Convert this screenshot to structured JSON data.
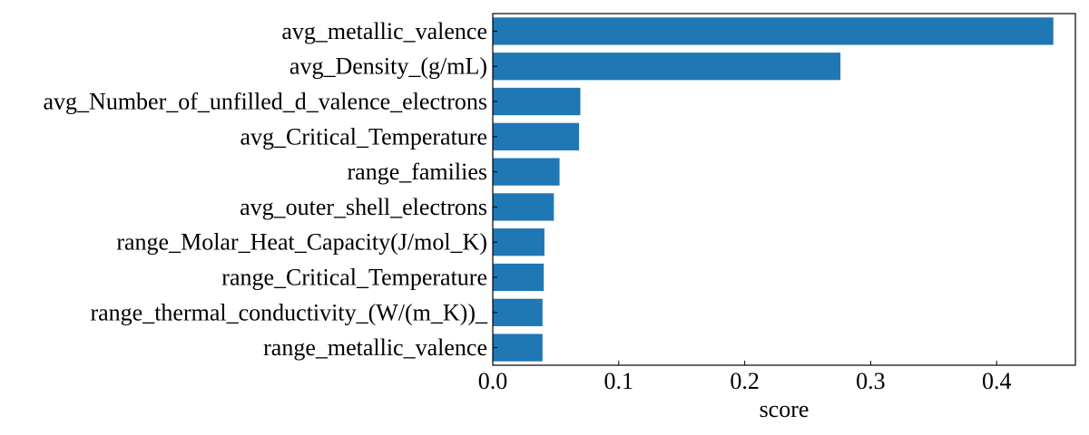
{
  "colors": {
    "bar": "#1f77b4",
    "axis": "#000000",
    "background": "#ffffff"
  },
  "chart_data": {
    "type": "bar",
    "orientation": "horizontal",
    "title": "",
    "xlabel": "score",
    "ylabel": "",
    "xlim": [
      0,
      0.4625
    ],
    "xticks": [
      "0.0",
      "0.1",
      "0.2",
      "0.3",
      "0.4"
    ],
    "xtick_values": [
      0.0,
      0.1,
      0.2,
      0.3,
      0.4
    ],
    "grid": false,
    "categories": [
      "avg_metallic_valence",
      "avg_Density_(g/mL)",
      "avg_Number_of_unfilled_d_valence_electrons",
      "avg_Critical_Temperature",
      "range_families",
      "avg_outer_shell_electrons",
      "range_Molar_Heat_Capacity(J/mol_K)",
      "range_Critical_Temperature",
      "range_thermal_conductivity_(W/(m_K))_",
      "range_metallic_valence"
    ],
    "values": [
      0.445,
      0.276,
      0.0695,
      0.0685,
      0.053,
      0.0485,
      0.041,
      0.0405,
      0.0395,
      0.0395
    ]
  }
}
